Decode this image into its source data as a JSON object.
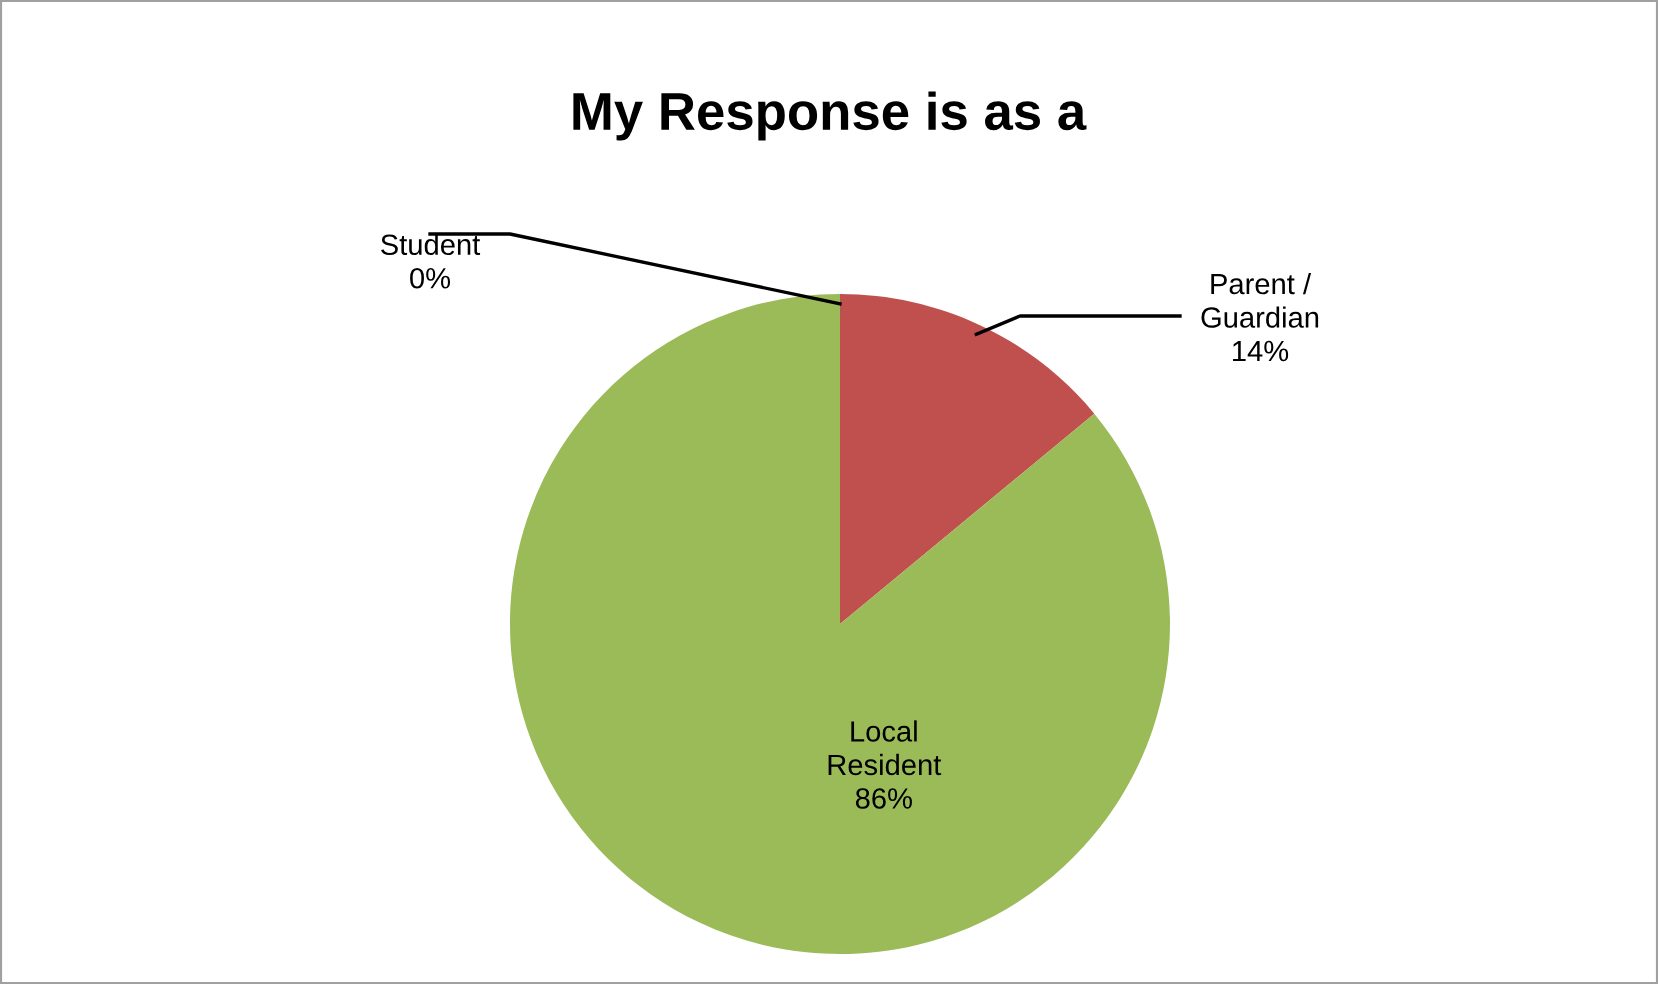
{
  "chart_data": {
    "type": "pie",
    "title": "My Response is as a",
    "categories": [
      "Student",
      "Parent / Guardian",
      "Local Resident"
    ],
    "values": [
      0,
      14,
      86
    ],
    "colors": [
      "#4f81bd",
      "#c0504d",
      "#9bbb59"
    ],
    "value_labels": [
      "0%",
      "14%",
      "86%"
    ]
  }
}
